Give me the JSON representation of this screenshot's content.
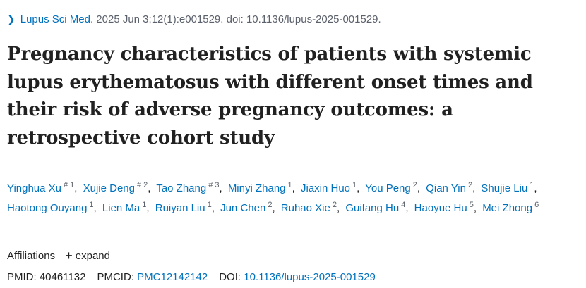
{
  "citation": {
    "journal": "Lupus Sci Med.",
    "details": "2025 Jun 3;12(1):e001529. doi: 10.1136/lupus-2025-001529."
  },
  "title": "Pregnancy characteristics of patients with systemic lupus erythematosus with different onset times and their risk of adverse pregnancy outcomes: a retrospective cohort study",
  "authors": [
    {
      "name": "Yinghua Xu",
      "equal": "#",
      "aff": "1"
    },
    {
      "name": "Xujie Deng",
      "equal": "#",
      "aff": "2"
    },
    {
      "name": "Tao Zhang",
      "equal": "#",
      "aff": "3"
    },
    {
      "name": "Minyi Zhang",
      "equal": "",
      "aff": "1"
    },
    {
      "name": "Jiaxin Huo",
      "equal": "",
      "aff": "1"
    },
    {
      "name": "You Peng",
      "equal": "",
      "aff": "2"
    },
    {
      "name": "Qian Yin",
      "equal": "",
      "aff": "2"
    },
    {
      "name": "Shujie Liu",
      "equal": "",
      "aff": "1"
    },
    {
      "name": "Haotong Ouyang",
      "equal": "",
      "aff": "1"
    },
    {
      "name": "Lien Ma",
      "equal": "",
      "aff": "1"
    },
    {
      "name": "Ruiyan Liu",
      "equal": "",
      "aff": "1"
    },
    {
      "name": "Jun Chen",
      "equal": "",
      "aff": "2"
    },
    {
      "name": "Ruhao Xie",
      "equal": "",
      "aff": "2"
    },
    {
      "name": "Guifang Hu",
      "equal": "",
      "aff": "4"
    },
    {
      "name": "Haoyue Hu",
      "equal": "",
      "aff": "5"
    },
    {
      "name": "Mei Zhong",
      "equal": "",
      "aff": "6"
    }
  ],
  "affiliations": {
    "label": "Affiliations",
    "toggle_icon": "+",
    "toggle_label": "expand"
  },
  "identifiers": {
    "pmid_label": "PMID:",
    "pmid": "40461132",
    "pmcid_label": "PMCID:",
    "pmcid": "PMC12142142",
    "doi_label": "DOI:",
    "doi": "10.1136/lupus-2025-001529"
  },
  "colors": {
    "link": "#0071bc",
    "text": "#212121",
    "muted": "#5b616b"
  }
}
